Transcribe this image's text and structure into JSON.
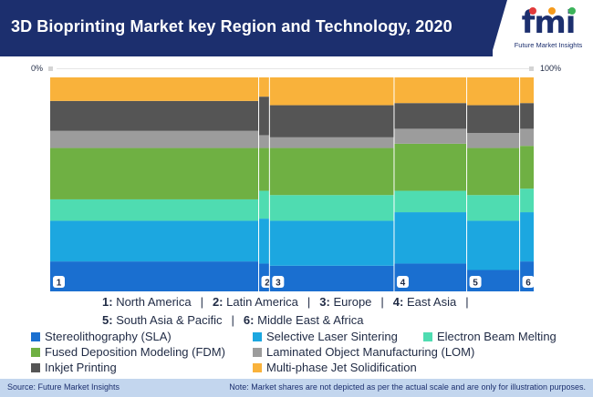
{
  "header": {
    "title": "3D Bioprinting Market key Region and Technology, 2020"
  },
  "logo": {
    "wordmark": "fmi",
    "subtitle": "Future Market Insights"
  },
  "axis": {
    "left_label": "0%",
    "right_label": "100%"
  },
  "regions_legend": {
    "row1": [
      {
        "num": "1:",
        "name": "North America"
      },
      {
        "num": "2:",
        "name": "Latin America"
      },
      {
        "num": "3:",
        "name": "Europe"
      },
      {
        "num": "4:",
        "name": "East Asia"
      }
    ],
    "row2": [
      {
        "num": "5:",
        "name": "South Asia & Pacific"
      },
      {
        "num": "6:",
        "name": "Middle East & Africa"
      }
    ],
    "separator": "|"
  },
  "colors": {
    "Stereolithography (SLA)": "#1a6fd0",
    "Selective Laser Sintering": "#1ca7e0",
    "Electron Beam Melting": "#4fdcb1",
    "Fused Deposition Modeling (FDM)": "#6fb043",
    "Laminated Object Manufacturing (LOM)": "#9c9c9c",
    "Inkjet Printing": "#555555",
    "Multi-phase Jet Solidification": "#f9b23b"
  },
  "chart_data": {
    "type": "mekko",
    "x_range": [
      0,
      100
    ],
    "y_range": [
      0,
      100
    ],
    "x_labels": [
      "0%",
      "100%"
    ],
    "categories": [
      "1",
      "2",
      "3",
      "4",
      "5",
      "6"
    ],
    "category_widths": [
      44.5,
      2.3,
      26.6,
      15.5,
      11.3,
      3.0
    ],
    "series": [
      {
        "name": "Stereolithography (SLA)",
        "values": [
          14,
          13,
          12,
          13,
          10,
          14
        ]
      },
      {
        "name": "Selective Laser Sintering",
        "values": [
          19,
          21,
          21,
          24,
          23,
          23
        ]
      },
      {
        "name": "Electron Beam Melting",
        "values": [
          10,
          13,
          12,
          10,
          12,
          11
        ]
      },
      {
        "name": "Fused Deposition Modeling (FDM)",
        "values": [
          24,
          20,
          22,
          22,
          22,
          20
        ]
      },
      {
        "name": "Laminated Object Manufacturing (LOM)",
        "values": [
          8,
          6,
          5,
          7,
          7,
          8
        ]
      },
      {
        "name": "Inkjet Printing",
        "values": [
          14,
          18,
          15,
          12,
          13,
          12
        ]
      },
      {
        "name": "Multi-phase Jet Solidification",
        "values": [
          11,
          9,
          13,
          12,
          13,
          12
        ]
      }
    ],
    "legend": [
      "Stereolithography (SLA)",
      "Selective Laser Sintering",
      "Electron Beam Melting",
      "Fused Deposition Modeling (FDM)",
      "Laminated Object Manufacturing (LOM)",
      "Inkjet Printing",
      "Multi-phase Jet Solidification"
    ]
  },
  "footer": {
    "source": "Source: Future Market Insights",
    "note": "Note: Market shares are not depicted as per the actual scale and are only for illustration purposes."
  }
}
